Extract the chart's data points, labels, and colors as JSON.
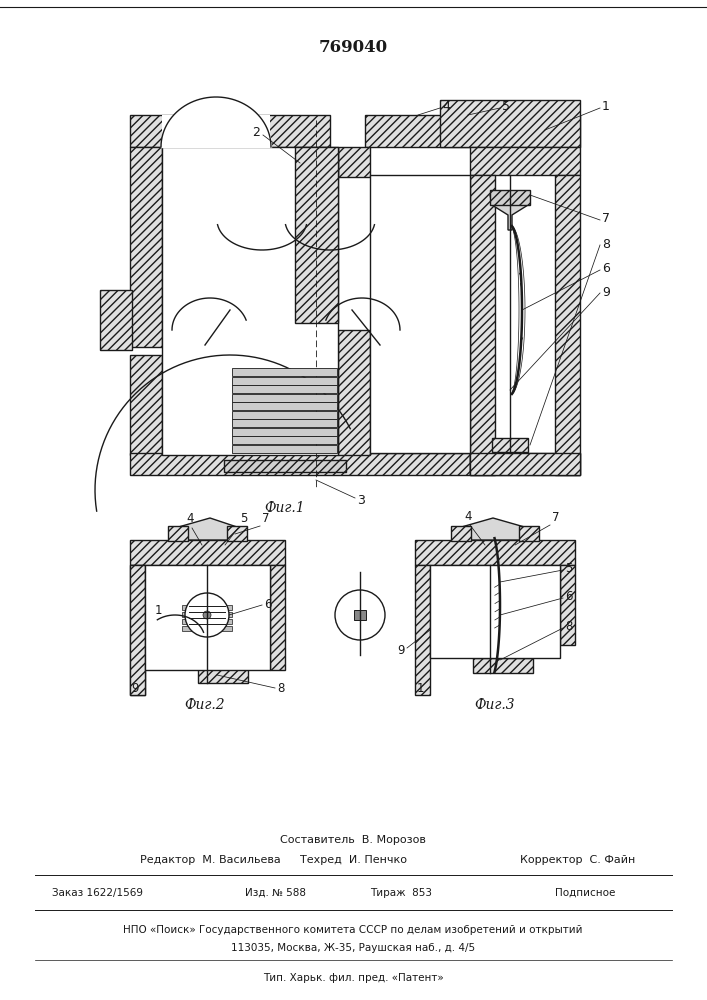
{
  "patent_number": "769040",
  "fig1_label": "Фиг.1",
  "fig2_label": "Фиг.2",
  "fig3_label": "Фиг.3",
  "footer_line1": "Составитель  В. Морозов",
  "footer_line2_left": "Редактор  М. Васильева",
  "footer_line2_mid": "Техред  И. Пенчко",
  "footer_line2_right": "Корректор  С. Файн",
  "footer_line3_left": "Заказ 1622/1569",
  "footer_line3_mid1": "Изд. № 588",
  "footer_line3_mid2": "Тираж  853",
  "footer_line3_right": "Подписное",
  "footer_line4": "НПО «Поиск» Государственного комитета СССР по делам изобретений и открытий",
  "footer_line5": "113035, Москва, Ж-35, Раушская наб., д. 4/5",
  "footer_line6": "Тип. Харьк. фил. пред. «Патент»",
  "bg_color": "#ffffff",
  "line_color": "#1a1a1a"
}
